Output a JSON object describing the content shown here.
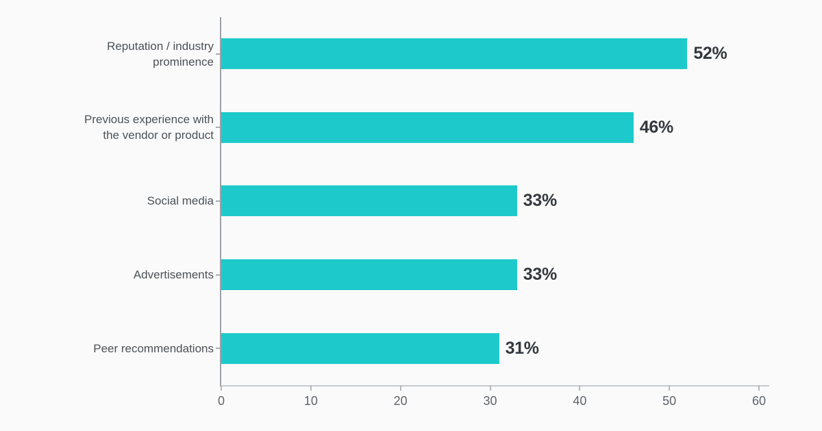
{
  "chart_data": {
    "type": "bar",
    "orientation": "horizontal",
    "title": "",
    "xlabel": "",
    "ylabel": "",
    "categories": [
      "Reputation / industry prominence",
      "Previous experience with the vendor or product",
      "Social media",
      "Advertisements",
      "Peer recommendations"
    ],
    "values": [
      52,
      46,
      33,
      33,
      31
    ],
    "value_labels": [
      "52%",
      "46%",
      "33%",
      "33%",
      "31%"
    ],
    "xlim": [
      0,
      60
    ],
    "xticks": [
      0,
      10,
      20,
      30,
      40,
      50,
      60
    ],
    "grid": false,
    "legend": "none"
  },
  "colors": {
    "bar": "#1EC9CB",
    "background": "#FAFAFA",
    "value_label": "#33383E",
    "category_label": "#4C5156",
    "tick_label": "#5F646A",
    "y_axis": "#9CA1A6",
    "x_axis": "#C6CACD",
    "tick_mark": "#B5B9BD"
  }
}
